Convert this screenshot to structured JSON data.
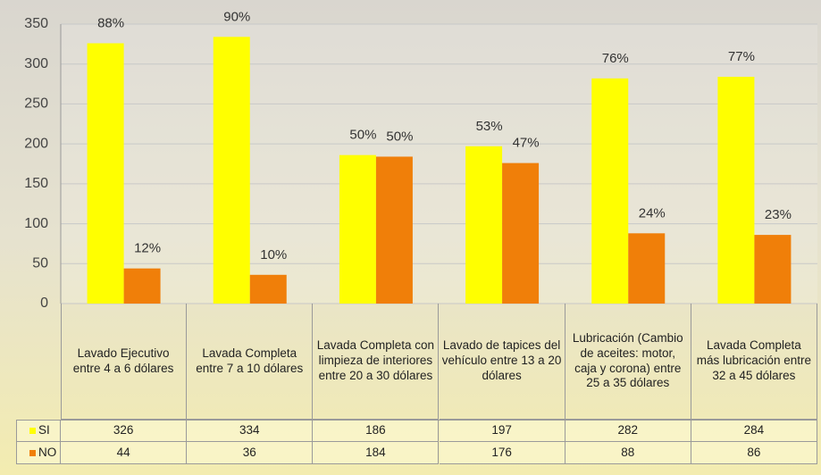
{
  "chart_data": {
    "type": "bar",
    "categories": [
      "Lavado Ejecutivo entre 4 a 6 dólares",
      "Lavada Completa entre 7 a 10 dólares",
      "Lavada Completa con limpieza de interiores entre 20 a 30 dólares",
      "Lavado de tapices del vehículo entre 13 a 20 dólares",
      "Lubricación (Cambio de aceites: motor, caja y corona) entre 25 a 35 dólares",
      "Lavada Completa más lubricación entre 32 a 45 dólares"
    ],
    "series": [
      {
        "name": "SI",
        "color": "#ffff00",
        "values": [
          326,
          334,
          186,
          197,
          282,
          284
        ],
        "percent_labels": [
          "88%",
          "90%",
          "50%",
          "53%",
          "76%",
          "77%"
        ]
      },
      {
        "name": "NO",
        "color": "#f07f09",
        "values": [
          44,
          36,
          184,
          176,
          88,
          86
        ],
        "percent_labels": [
          "12%",
          "10%",
          "50%",
          "47%",
          "24%",
          "23%"
        ]
      }
    ],
    "ylim": [
      0,
      350
    ],
    "yticks": [
      0,
      50,
      100,
      150,
      200,
      250,
      300,
      350
    ],
    "grid": true,
    "data_table": true
  }
}
